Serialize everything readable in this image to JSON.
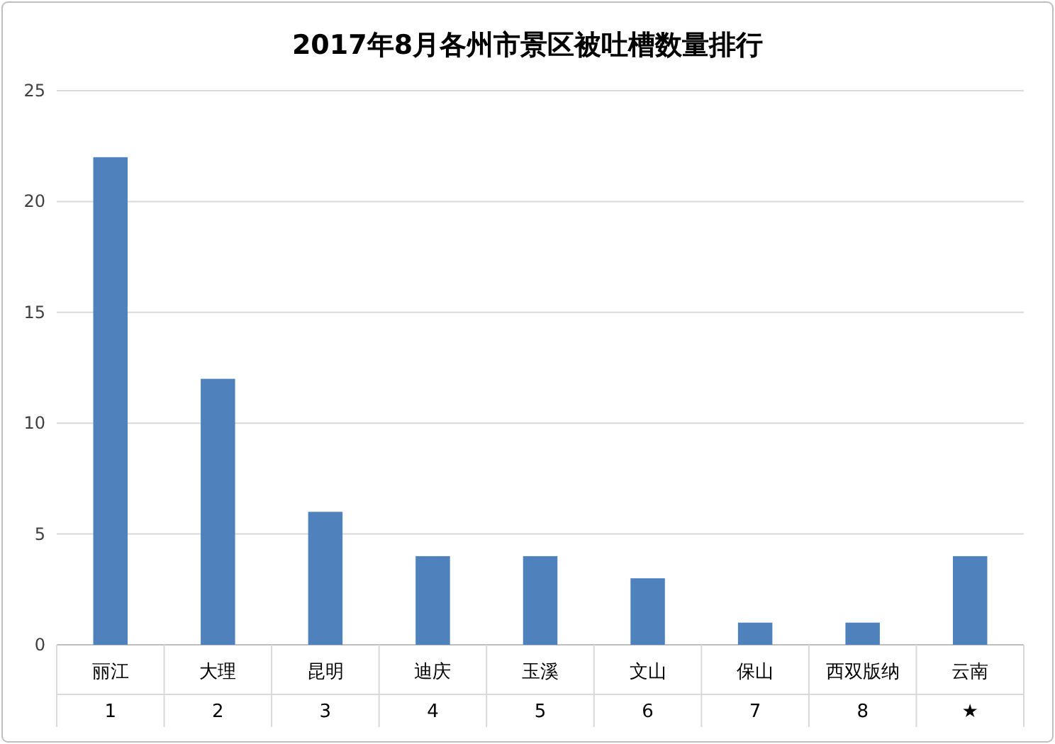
{
  "chart_data": {
    "type": "bar",
    "title": "2017年8月各州市景区被吐槽数量排行",
    "categories": [
      "丽江\n1",
      "大理\n2",
      "昆明\n3",
      "迪庆\n4",
      "玉溪\n5",
      "文山\n6",
      "保山\n7",
      "西双版纳\n8",
      "云南\n★"
    ],
    "values": [
      22,
      12,
      6,
      4,
      4,
      3,
      1,
      1,
      4
    ],
    "color": "#4f81bd",
    "ylim": [
      0,
      25
    ],
    "yticks": [
      0,
      5,
      10,
      15,
      20,
      25
    ],
    "grid": "y"
  }
}
